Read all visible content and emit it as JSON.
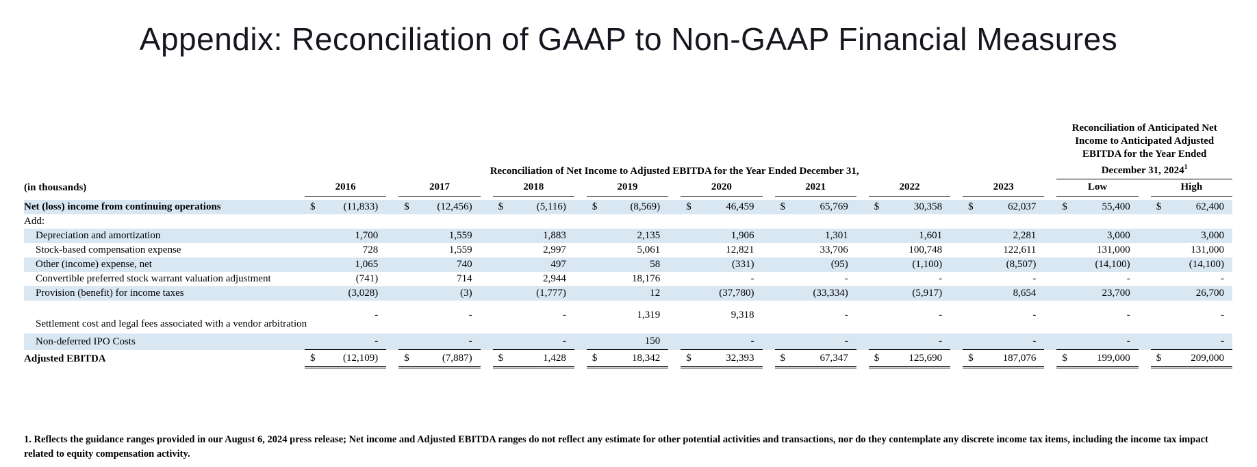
{
  "title": "Appendix: Reconciliation of GAAP to Non-GAAP Financial Measures",
  "table": {
    "row_label_header": "(in thousands)",
    "group_header_left": "Reconciliation of Net Income to Adjusted EBITDA for the Year Ended December 31,",
    "group_header_right_lines": [
      "Reconciliation of Anticipated Net",
      "Income to Anticipated Adjusted",
      "EBITDA for the Year Ended",
      "December 31, 2024"
    ],
    "group_header_right_superscript": "1",
    "columns": [
      "2016",
      "2017",
      "2018",
      "2019",
      "2020",
      "2021",
      "2022",
      "2023",
      "Low",
      "High"
    ],
    "rows": [
      {
        "label": "Net (loss) income from continuing operations",
        "bold": true,
        "shaded": true,
        "dollar": true,
        "values": [
          "(11,833)",
          "(12,456)",
          "(5,116)",
          "(8,569)",
          "46,459",
          "65,769",
          "30,358",
          "62,037",
          "55,400",
          "62,400"
        ]
      },
      {
        "label": "Add:",
        "shaded": false,
        "values": []
      },
      {
        "label": "Depreciation and amortization",
        "indent": true,
        "shaded": true,
        "values": [
          "1,700",
          "1,559",
          "1,883",
          "2,135",
          "1,906",
          "1,301",
          "1,601",
          "2,281",
          "3,000",
          "3,000"
        ]
      },
      {
        "label": "Stock-based compensation expense",
        "indent": true,
        "shaded": false,
        "values": [
          "728",
          "1,559",
          "2,997",
          "5,061",
          "12,821",
          "33,706",
          "100,748",
          "122,611",
          "131,000",
          "131,000"
        ]
      },
      {
        "label": "Other (income) expense, net",
        "indent": true,
        "shaded": true,
        "values": [
          "1,065",
          "740",
          "497",
          "58",
          "(331)",
          "(95)",
          "(1,100)",
          "(8,507)",
          "(14,100)",
          "(14,100)"
        ]
      },
      {
        "label": "Convertible preferred stock warrant valuation adjustment",
        "indent": true,
        "shaded": false,
        "values": [
          "(741)",
          "714",
          "2,944",
          "18,176",
          "-",
          "-",
          "-",
          "-",
          "-",
          "-"
        ]
      },
      {
        "label": "Provision (benefit) for income taxes",
        "indent": true,
        "shaded": true,
        "values": [
          "(3,028)",
          "(3)",
          "(1,777)",
          "12",
          "(37,780)",
          "(33,334)",
          "(5,917)",
          "8,654",
          "23,700",
          "26,700"
        ]
      },
      {
        "label": "Settlement cost and legal fees associated with a vendor arbitration",
        "indent": true,
        "shaded": false,
        "tall": true,
        "values": [
          "-",
          "-",
          "-",
          "1,319",
          "9,318",
          "-",
          "-",
          "-",
          "-",
          "-"
        ]
      },
      {
        "label": "Non-deferred IPO Costs",
        "indent": true,
        "shaded": true,
        "underline_bottom": true,
        "values": [
          "-",
          "-",
          "-",
          "150",
          "-",
          "-",
          "-",
          "-",
          "-",
          "-"
        ]
      },
      {
        "label": "Adjusted EBITDA",
        "bold": true,
        "shaded": false,
        "dollar": true,
        "total": true,
        "values": [
          "(12,109)",
          "(7,887)",
          "1,428",
          "18,342",
          "32,393",
          "67,347",
          "125,690",
          "187,076",
          "199,000",
          "209,000"
        ]
      }
    ]
  },
  "footnote": "1. Reflects the guidance ranges provided in our August 6, 2024 press release; Net income and Adjusted EBITDA ranges do not reflect any estimate for other potential activities and transactions, nor do they contemplate any discrete income tax items, including the income tax impact related to equity compensation activity.",
  "colors": {
    "row_shade": "#d9e7f3",
    "title": "#16161f",
    "text": "#000000"
  }
}
